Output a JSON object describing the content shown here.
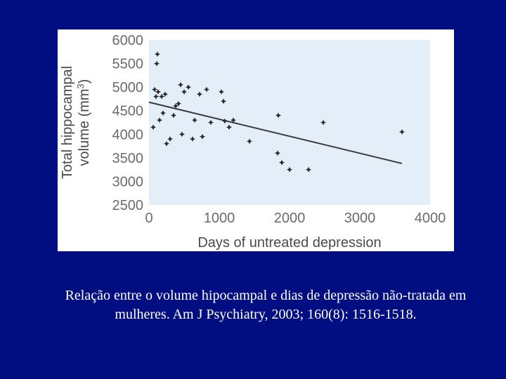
{
  "colors": {
    "background": "#000e82",
    "plot_area": "#e3eef8",
    "marker": "#2a2a2a",
    "trend_line": "#3a3a3a",
    "tick_text": "#6b6b6b"
  },
  "chart_data": {
    "type": "scatter",
    "xlabel": "Days of untreated depression",
    "ylabel": "Total hippocampal volume (mm³)",
    "ylabel_main": "Total hippocampal",
    "ylabel_sub": "volume (mm",
    "ylabel_sup": "3",
    "ylabel_close": ")",
    "xlim": [
      0,
      4000
    ],
    "ylim": [
      2500,
      6000
    ],
    "xticks": [
      "0",
      "1000",
      "2000",
      "3000",
      "4000"
    ],
    "yticks": [
      "6000",
      "5500",
      "5000",
      "4500",
      "4000",
      "3500",
      "3000",
      "2500"
    ],
    "x": [
      60,
      120,
      110,
      80,
      130,
      180,
      230,
      100,
      150,
      200,
      250,
      300,
      350,
      380,
      420,
      450,
      470,
      500,
      560,
      620,
      650,
      720,
      760,
      820,
      880,
      1030,
      1060,
      1080,
      1140,
      1200,
      1430,
      1830,
      1840,
      1890,
      2000,
      2270,
      2480,
      3600
    ],
    "y": [
      4150,
      5700,
      5500,
      4950,
      4900,
      4800,
      4850,
      4800,
      4300,
      4450,
      3800,
      3900,
      4400,
      4600,
      4650,
      5050,
      4000,
      4900,
      5000,
      3900,
      4300,
      4850,
      3950,
      4950,
      4250,
      4900,
      4700,
      4280,
      4150,
      4300,
      3850,
      3600,
      4400,
      3400,
      3250,
      3250,
      4250,
      4050
    ],
    "trend": {
      "x": [
        0,
        3600
      ],
      "y": [
        4680,
        3380
      ]
    }
  },
  "caption": "Relação entre o volume hipocampal e dias de depressão não-tratada em mulheres. Am J Psychiatry, 2003; 160(8): 1516-1518."
}
